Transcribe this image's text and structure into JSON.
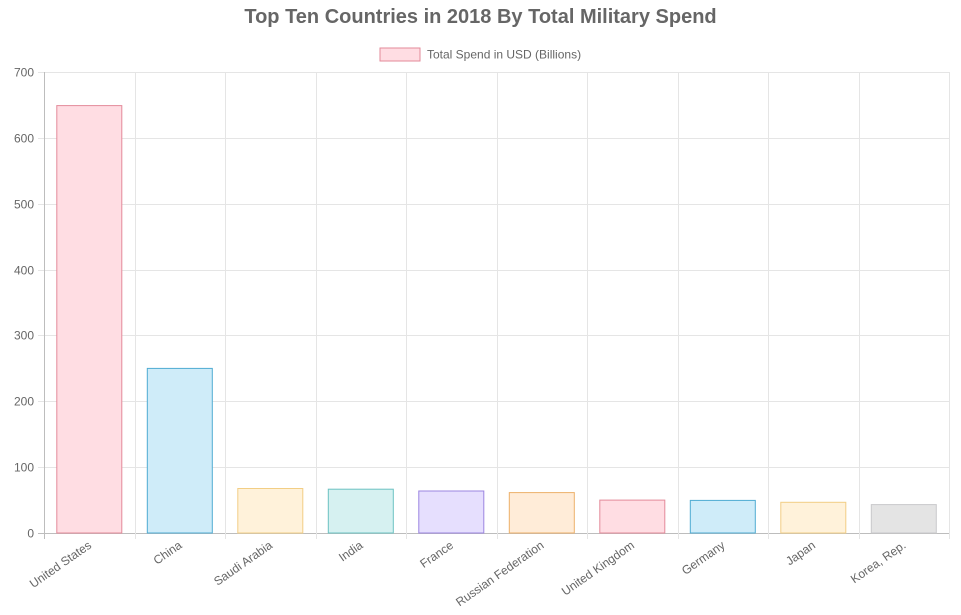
{
  "chart_data": {
    "type": "bar",
    "title": "Top Ten Countries in 2018 By Total Military Spend",
    "legend": {
      "label": "Total Spend in USD (Billions)",
      "position": "top-center",
      "fill": "#FFDDE3",
      "stroke": "#E38A9A"
    },
    "categories": [
      "United States",
      "China",
      "Saudi Arabia",
      "India",
      "France",
      "Russian Federation",
      "United Kingdom",
      "Germany",
      "Japan",
      "Korea, Rep."
    ],
    "series": [
      {
        "name": "Total Spend in USD (Billions)",
        "values": [
          649,
          250,
          67.6,
          66.5,
          63.8,
          61.4,
          50,
          49.5,
          46.6,
          43.1
        ]
      }
    ],
    "bar_fills": [
      "#FFDDE3",
      "#CFECF9",
      "#FFF2DA",
      "#D6F1F1",
      "#E6DFFE",
      "#FFECD8",
      "#FFDDE3",
      "#CFECF9",
      "#FFF2DA",
      "#E4E4E4"
    ],
    "bar_strokes": [
      "#E38A9A",
      "#4FACD2",
      "#F2CE85",
      "#6CC2C2",
      "#9B84E0",
      "#EDB069",
      "#E38A9A",
      "#4FACD2",
      "#F2CE85",
      "#C9C9CB"
    ],
    "yticks": [
      0,
      100,
      200,
      300,
      400,
      500,
      600,
      700
    ],
    "ylim": [
      0,
      700
    ],
    "xlabel": "",
    "ylabel": "",
    "grid": true
  }
}
